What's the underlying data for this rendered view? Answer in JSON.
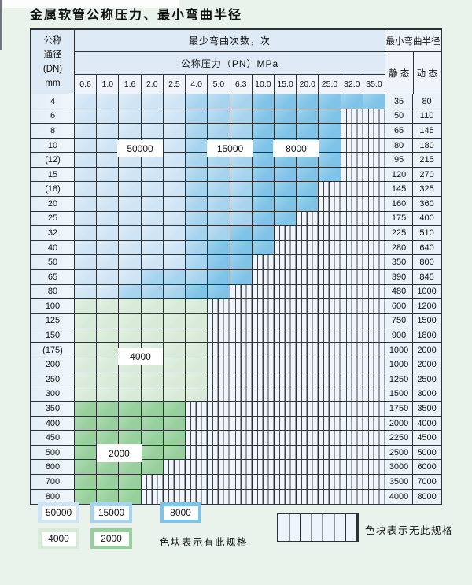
{
  "title": "金属软管公称压力、最小弯曲半径",
  "colors": {
    "b1": "#cfe4f4",
    "b2": "#a6d3ee",
    "b3": "#7fc4e8",
    "g1": "#d7ebd8",
    "g2": "#97d09c",
    "hdrbg": "#dde9f5",
    "numbg": "#eef4fa",
    "dnbg": "#e3eef8",
    "valbg": "#eaf2fa",
    "hatchbg": "#f0f6fb",
    "hatchline": "#3d454b",
    "grid": "#2c3135",
    "pagebg": "#e9f3ec"
  },
  "table": {
    "corner_lines": [
      "公称",
      "通径",
      "(DN)",
      "mm"
    ],
    "bend_cycles_header": "最少弯曲次数，次",
    "pressure_header": "公称压力（PN）MPa",
    "pressure_columns": [
      "0.6",
      "1.0",
      "1.6",
      "2.0",
      "2.5",
      "4.0",
      "5.0",
      "6.3",
      "10.0",
      "15.0",
      "20.0",
      "25.0",
      "32.0",
      "35.0"
    ],
    "radius_header": "最小弯曲半径",
    "static_label": "静 态",
    "dynamic_label": "动 态",
    "cell_codes_meaning": {
      "b1": "50000次",
      "b2": "15000次",
      "b3": "8000次",
      "g1": "4000次",
      "g2": "2000次",
      "n": "无此规格"
    },
    "rows": [
      {
        "dn": "4",
        "cells": "5b1 3b2 6b3",
        "static": "35",
        "dynamic": "80"
      },
      {
        "dn": "6",
        "cells": "5b1 3b2 4b3 2n",
        "static": "50",
        "dynamic": "110"
      },
      {
        "dn": "8",
        "cells": "5b1 3b2 4b3 2n",
        "static": "65",
        "dynamic": "145"
      },
      {
        "dn": "10",
        "cells": "5b1 3b2 4b3 2n",
        "static": "80",
        "dynamic": "180"
      },
      {
        "dn": "(12)",
        "cells": "5b1 3b2 4b3 2n",
        "static": "95",
        "dynamic": "215"
      },
      {
        "dn": "15",
        "cells": "5b1 3b2 4b3 2n",
        "static": "120",
        "dynamic": "270"
      },
      {
        "dn": "(18)",
        "cells": "5b1 3b2 3b3 3n",
        "static": "145",
        "dynamic": "325"
      },
      {
        "dn": "20",
        "cells": "5b1 3b2 3b3 3n",
        "static": "160",
        "dynamic": "360"
      },
      {
        "dn": "25",
        "cells": "5b1 3b2 2b3 4n",
        "static": "175",
        "dynamic": "400"
      },
      {
        "dn": "32",
        "cells": "5b1 2b2 2b3 5n",
        "static": "225",
        "dynamic": "510"
      },
      {
        "dn": "40",
        "cells": "5b1 1b2 3b3 5n",
        "static": "280",
        "dynamic": "640"
      },
      {
        "dn": "50",
        "cells": "5b1 1b2 2b3 6n",
        "static": "350",
        "dynamic": "800"
      },
      {
        "dn": "65",
        "cells": "3b1 3b2 2b3 6n",
        "static": "390",
        "dynamic": "845"
      },
      {
        "dn": "80",
        "cells": "2b1 3b2 2b3 7n",
        "static": "480",
        "dynamic": "1000"
      },
      {
        "dn": "100",
        "cells": "6g1 8n",
        "static": "600",
        "dynamic": "1200"
      },
      {
        "dn": "125",
        "cells": "6g1 8n",
        "static": "750",
        "dynamic": "1500"
      },
      {
        "dn": "150",
        "cells": "6g1 8n",
        "static": "900",
        "dynamic": "1800"
      },
      {
        "dn": "(175)",
        "cells": "6g1 8n",
        "static": "1000",
        "dynamic": "2000"
      },
      {
        "dn": "200",
        "cells": "6g1 8n",
        "static": "1000",
        "dynamic": "2000"
      },
      {
        "dn": "250",
        "cells": "6g1 8n",
        "static": "1250",
        "dynamic": "2500"
      },
      {
        "dn": "300",
        "cells": "6g1 8n",
        "static": "1500",
        "dynamic": "3000"
      },
      {
        "dn": "350",
        "cells": "5g2 9n",
        "static": "1750",
        "dynamic": "3500"
      },
      {
        "dn": "400",
        "cells": "5g2 9n",
        "static": "2000",
        "dynamic": "4000"
      },
      {
        "dn": "450",
        "cells": "5g2 9n",
        "static": "2250",
        "dynamic": "4500"
      },
      {
        "dn": "500",
        "cells": "5g2 9n",
        "static": "2500",
        "dynamic": "5000"
      },
      {
        "dn": "600",
        "cells": "4g2 10n",
        "static": "3000",
        "dynamic": "6000"
      },
      {
        "dn": "700",
        "cells": "3g2 11n",
        "static": "3500",
        "dynamic": "7000"
      },
      {
        "dn": "800",
        "cells": "3g2 11n",
        "static": "4000",
        "dynamic": "8000"
      }
    ]
  },
  "overlays": [
    {
      "text": "50000"
    },
    {
      "text": "15000"
    },
    {
      "text": "8000"
    },
    {
      "text": "4000"
    },
    {
      "text": "2000"
    }
  ],
  "legend": {
    "items": [
      {
        "label": "50000",
        "color": "b1"
      },
      {
        "label": "15000",
        "color": "b2"
      },
      {
        "label": "8000",
        "color": "b3"
      },
      {
        "label": "4000",
        "color": "g1"
      },
      {
        "label": "2000",
        "color": "g2"
      }
    ],
    "available_note": "色块表示有此规格",
    "unavailable_note": "色块表示无此规格"
  }
}
